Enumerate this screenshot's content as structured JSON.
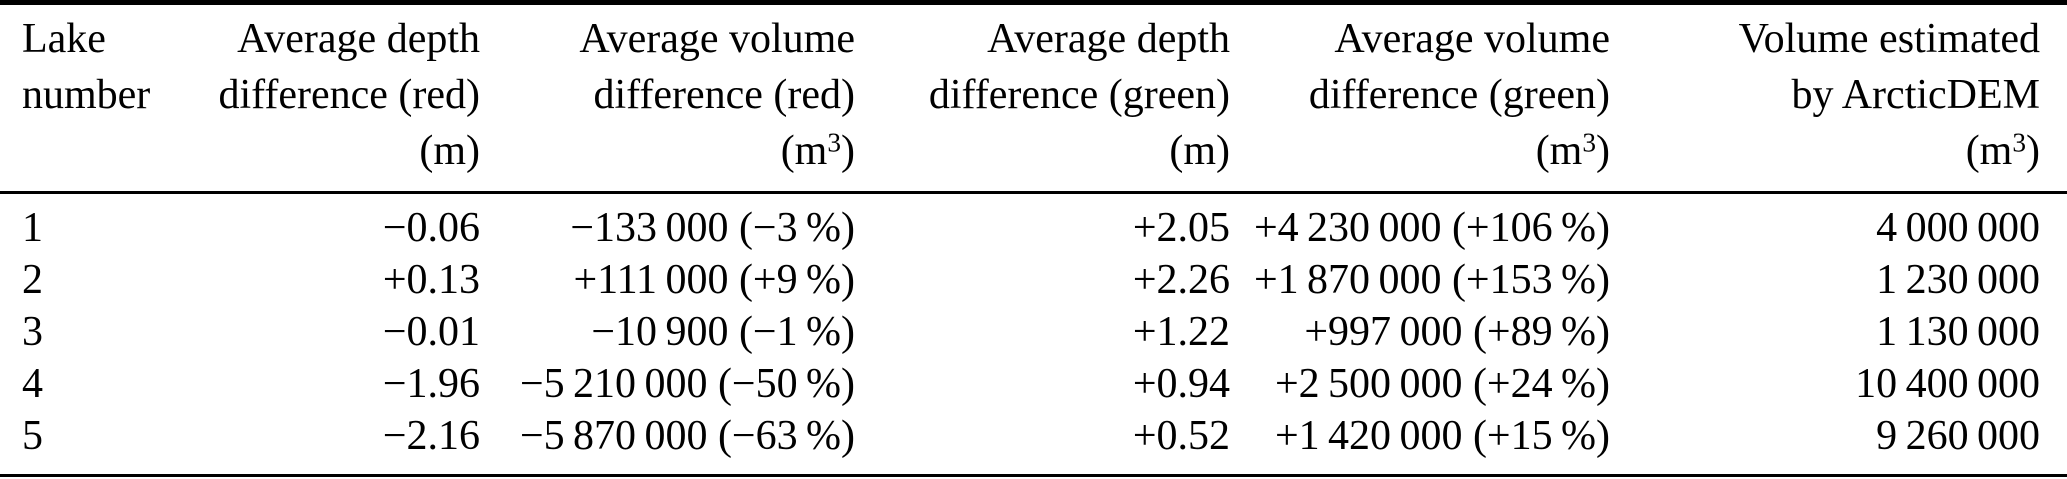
{
  "colors": {
    "background": "#ffffff",
    "text": "#000000",
    "rule": "#000000"
  },
  "table": {
    "headers": [
      {
        "line1": "Lake",
        "line2": "number",
        "unit_pre": "",
        "unit_sup": "",
        "unit_post": ""
      },
      {
        "line1": "Average depth",
        "line2": "difference (red)",
        "unit_pre": "(m",
        "unit_sup": "",
        "unit_post": ")"
      },
      {
        "line1": "Average volume",
        "line2": "difference (red)",
        "unit_pre": "(m",
        "unit_sup": "3",
        "unit_post": ")"
      },
      {
        "line1": "Average depth",
        "line2": "difference (green)",
        "unit_pre": "(m",
        "unit_sup": "",
        "unit_post": ")"
      },
      {
        "line1": "Average volume",
        "line2": "difference (green)",
        "unit_pre": "(m",
        "unit_sup": "3",
        "unit_post": ")"
      },
      {
        "line1": "Volume estimated",
        "line2": "by ArcticDEM",
        "unit_pre": "(m",
        "unit_sup": "3",
        "unit_post": ")"
      }
    ],
    "rows": [
      [
        "1",
        "−0.06",
        "−133 000 (−3 %)",
        "+2.05",
        "+4 230 000 (+106 %)",
        "4 000 000"
      ],
      [
        "2",
        "+0.13",
        "+111 000 (+9 %)",
        "+2.26",
        "+1 870 000 (+153 %)",
        "1 230 000"
      ],
      [
        "3",
        "−0.01",
        "−10 900 (−1 %)",
        "+1.22",
        "+997 000 (+89 %)",
        "1 130 000"
      ],
      [
        "4",
        "−1.96",
        "−5 210 000 (−50 %)",
        "+0.94",
        "+2 500 000 (+24 %)",
        "10 400 000"
      ],
      [
        "5",
        "−2.16",
        "−5 870 000 (−63 %)",
        "+0.52",
        "+1 420 000 (+15 %)",
        "9 260 000"
      ]
    ]
  }
}
